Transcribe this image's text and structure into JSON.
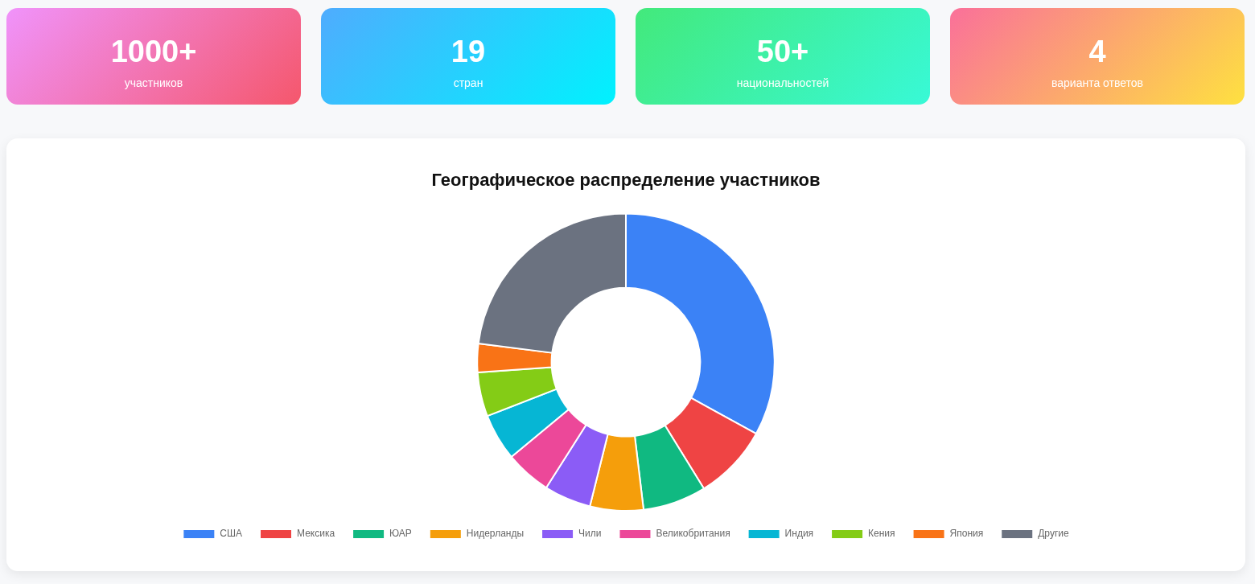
{
  "chart_data": [
    {
      "type": "other",
      "annotations": [
        "1000+",
        "участников",
        "19",
        "стран",
        "50+",
        "национальностей",
        "4",
        "варианта ответов"
      ]
    },
    {
      "type": "donut",
      "title": "Географическое распределение участников",
      "categories": [
        "США",
        "Мексика",
        "ЮАР",
        "Нидерланды",
        "Чили",
        "Великобритания",
        "Индия",
        "Кения",
        "Япония",
        "Другие"
      ],
      "values": [
        33,
        8.2,
        6.9,
        5.8,
        5.1,
        5,
        5.1,
        4.8,
        3.1,
        23
      ],
      "colors": [
        "#3b82f6",
        "#ef4444",
        "#10b981",
        "#f59e0b",
        "#8b5cf6",
        "#ec4899",
        "#06b6d4",
        "#84cc16",
        "#f97316",
        "#6b7280"
      ],
      "legend": "bottom"
    }
  ]
}
